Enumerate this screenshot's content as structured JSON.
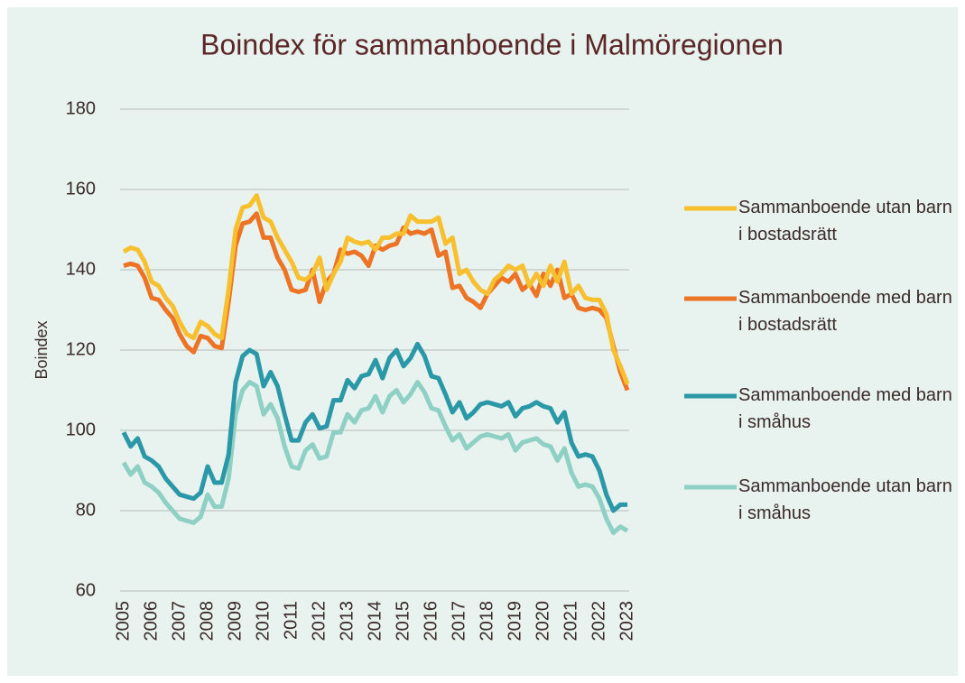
{
  "chart_data": {
    "type": "line",
    "title": "Boindex för sammanboende i Malmöregionen",
    "y_label": "Boindex",
    "categories": [
      "2005",
      null,
      null,
      null,
      "2006",
      null,
      null,
      null,
      "2007",
      null,
      null,
      null,
      "2008",
      null,
      null,
      null,
      "2009",
      null,
      null,
      null,
      "2010",
      null,
      null,
      null,
      "2011",
      null,
      null,
      null,
      "2012",
      null,
      null,
      null,
      "2013",
      null,
      null,
      null,
      "2014",
      null,
      null,
      null,
      "2015",
      null,
      null,
      null,
      "2016",
      null,
      null,
      null,
      "2017",
      null,
      null,
      null,
      "2018",
      null,
      null,
      null,
      "2019",
      null,
      null,
      null,
      "2020",
      null,
      null,
      null,
      "2021",
      null,
      null,
      null,
      "2022",
      null,
      null,
      null,
      "2023"
    ],
    "ylim": [
      60,
      180
    ],
    "yticks": [
      60,
      80,
      100,
      120,
      140,
      160,
      180
    ],
    "grid": true,
    "legend": "right",
    "series": [
      {
        "name": "Sammanboende utan barn i bostadsrätt",
        "color": "#f8bf2f",
        "values": [
          144.5,
          145.5,
          145,
          142,
          137,
          136,
          133,
          131,
          127,
          124,
          123,
          127,
          126,
          124,
          123,
          135,
          150,
          155.5,
          156,
          158.5,
          153,
          152,
          148,
          145,
          142,
          138,
          137.5,
          139,
          143,
          135,
          139,
          142,
          148,
          147,
          146.5,
          147,
          145,
          148,
          148,
          149,
          149,
          153.5,
          152,
          152,
          152,
          153,
          146.5,
          148,
          139,
          140,
          137,
          135,
          134,
          137.5,
          139,
          141,
          140,
          141,
          136,
          139,
          136,
          141,
          137,
          142,
          134,
          136,
          133,
          132.5,
          132.5,
          129,
          120,
          116,
          111.5
        ]
      },
      {
        "name": "Sammanboende med barn i bostadsrätt",
        "color": "#ec7424",
        "values": [
          141,
          141.5,
          141,
          138,
          133,
          132.5,
          130,
          128,
          124,
          121,
          119.5,
          123.5,
          123,
          121,
          120.5,
          132,
          146,
          151.5,
          152,
          154,
          148,
          148,
          143,
          140,
          135,
          134.5,
          135,
          140,
          132,
          137,
          139,
          145,
          144,
          144.5,
          143.5,
          141,
          146,
          145,
          146,
          146.5,
          150.5,
          149,
          149.5,
          149,
          150,
          143.5,
          144.5,
          135.5,
          136,
          133,
          132,
          130.5,
          134,
          136,
          138,
          137,
          139,
          135,
          136.5,
          133.5,
          139,
          136,
          140,
          133,
          134,
          130.5,
          130,
          130.5,
          130,
          128,
          121,
          114.5,
          110
        ]
      },
      {
        "name": "Sammanboende med barn i småhus",
        "color": "#2a98a6",
        "values": [
          99.5,
          96,
          98,
          93.5,
          92.5,
          91,
          88,
          86,
          84,
          83.5,
          83,
          84.5,
          91,
          87,
          87,
          94,
          112,
          118.5,
          120,
          119,
          111,
          114.5,
          111,
          104,
          97.5,
          97.5,
          102,
          104,
          100.5,
          101,
          107.5,
          107.5,
          112.5,
          110.5,
          113.5,
          114,
          117.5,
          113,
          118,
          120,
          116,
          118,
          121.5,
          118.5,
          113.5,
          113,
          109,
          104.5,
          107,
          103,
          104.5,
          106.5,
          107,
          106.5,
          106,
          107,
          103.5,
          105.5,
          106,
          107,
          106,
          105.5,
          102,
          104.5,
          97,
          93.5,
          94,
          93.5,
          90,
          84,
          80,
          81.5,
          81.5
        ]
      },
      {
        "name": "Sammanboende utan barn i småhus",
        "color": "#8ed0c3",
        "values": [
          92,
          89,
          91,
          87,
          86,
          84.5,
          82,
          80,
          78,
          77.5,
          77,
          78.5,
          84,
          81,
          81,
          88,
          104,
          110,
          112,
          111,
          104,
          106.5,
          103,
          96,
          91,
          90.5,
          95,
          96.5,
          93,
          93.5,
          99.5,
          99.5,
          104,
          102,
          105,
          105.5,
          108.5,
          104.5,
          108.5,
          110,
          107,
          109,
          112,
          109.5,
          105.5,
          105,
          101,
          97.5,
          99,
          95.5,
          97,
          98.5,
          99,
          98.5,
          98,
          99,
          95,
          97,
          97.5,
          98,
          96.5,
          96,
          92.5,
          95.5,
          89.5,
          86,
          86.5,
          86,
          83,
          78,
          74.5,
          76,
          75
        ]
      }
    ]
  }
}
